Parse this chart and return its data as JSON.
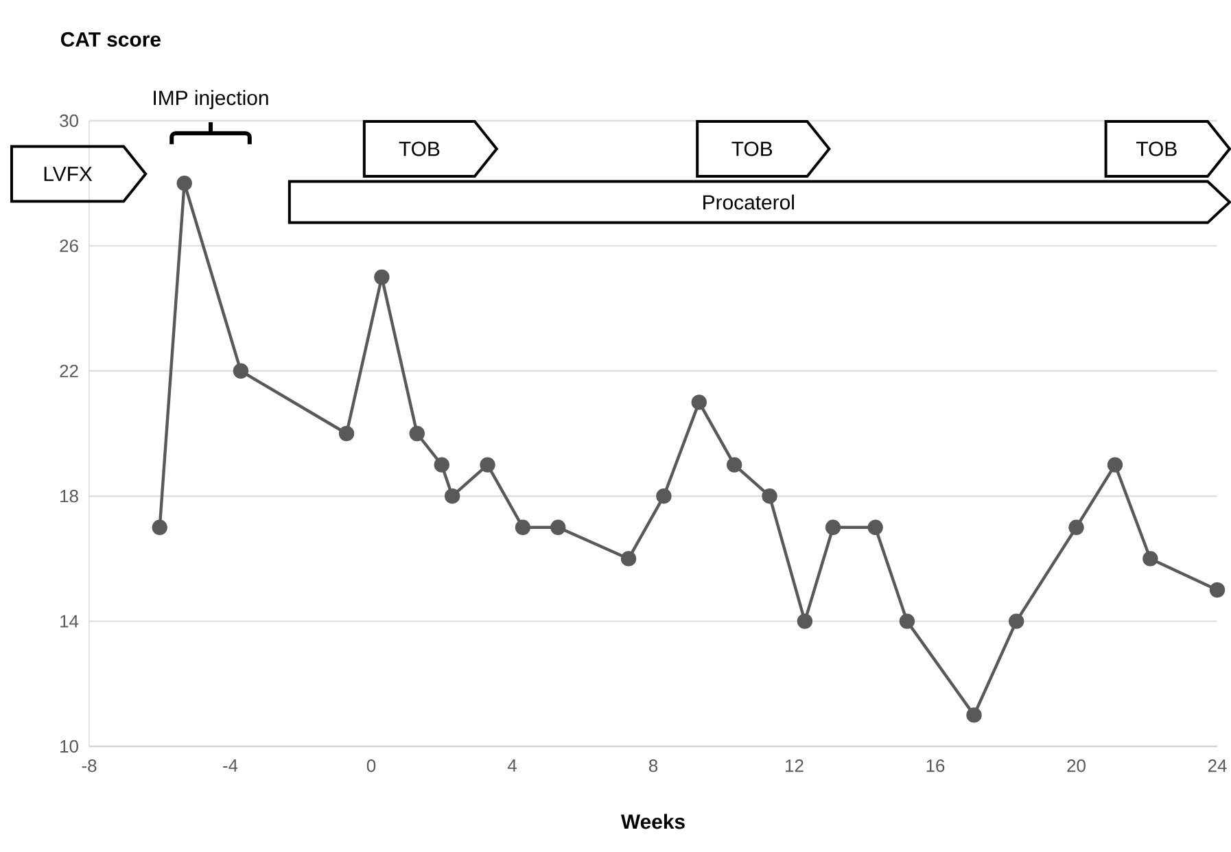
{
  "chart_data": {
    "type": "line",
    "ylabel": "CAT score",
    "xlabel": "Weeks",
    "x": [
      -6.0,
      -5.3,
      -3.7,
      -0.7,
      0.3,
      1.3,
      2.0,
      2.3,
      3.3,
      4.3,
      5.3,
      7.3,
      8.3,
      9.3,
      10.3,
      11.3,
      12.3,
      13.1,
      14.3,
      15.2,
      17.1,
      18.3,
      20.0,
      21.1,
      22.1,
      24.0
    ],
    "series": [
      {
        "color": "#595959",
        "values": [
          17,
          28,
          22,
          20,
          25,
          20,
          19,
          18,
          19,
          17,
          17,
          16,
          18,
          21,
          19,
          18,
          14,
          17,
          17,
          14,
          11,
          14,
          17,
          19,
          16,
          15
        ]
      }
    ],
    "xlim": [
      -8,
      24
    ],
    "xticks": [
      -8,
      -4,
      0,
      4,
      8,
      12,
      16,
      20,
      24
    ],
    "ylim": [
      10,
      30
    ],
    "yticks": [
      10,
      14,
      18,
      22,
      26,
      30
    ],
    "grid": "y",
    "marker": "circle",
    "line_style": "solid",
    "annotations": [
      "LVFX",
      "TOB",
      "TOB",
      "TOB",
      "Procaterol",
      "IMP injection"
    ]
  }
}
